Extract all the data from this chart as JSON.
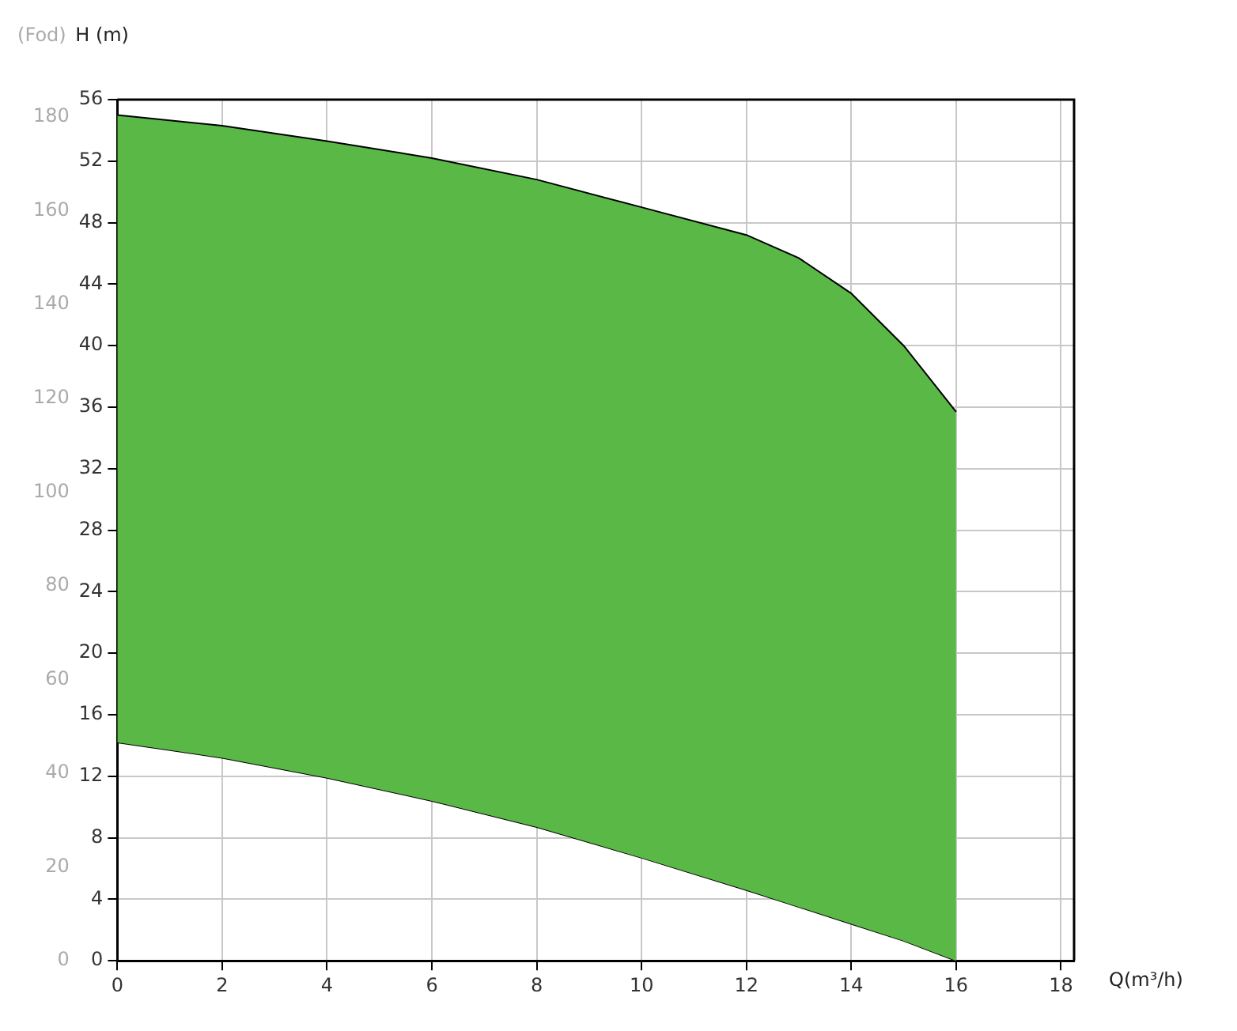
{
  "chart_data": {
    "type": "area",
    "xlabel": "Q(m³/h)",
    "ylabel": "H (m)",
    "y2label": "(Fod)",
    "xlim": [
      0,
      18.25
    ],
    "xticks": [
      0,
      2,
      4,
      6,
      8,
      10,
      12,
      14,
      16,
      18
    ],
    "ylim": [
      0,
      56
    ],
    "yticks": [
      0,
      4,
      8,
      12,
      16,
      20,
      24,
      28,
      32,
      36,
      40,
      44,
      48,
      52,
      56
    ],
    "y2lim": [
      0,
      183.7
    ],
    "y2ticks": [
      0,
      20,
      40,
      60,
      80,
      100,
      120,
      140,
      160,
      180
    ],
    "grid": true,
    "legend": false,
    "series": [
      {
        "color": "#5ab946",
        "x": [
          0,
          2,
          4,
          6,
          8,
          10,
          12,
          13,
          14,
          15,
          16
        ],
        "values": [
          55,
          54.3,
          53.3,
          52.2,
          50.8,
          49,
          47.2,
          45.7,
          43.4,
          40,
          35.7
        ]
      },
      {
        "type": "line",
        "color": "#000000",
        "x": [
          0,
          2,
          4,
          6,
          8,
          10,
          12,
          13,
          14,
          15,
          16
        ],
        "values": [
          14.2,
          13.2,
          11.9,
          10.4,
          8.7,
          6.7,
          4.6,
          3.5,
          2.4,
          1.3,
          0
        ]
      }
    ]
  }
}
